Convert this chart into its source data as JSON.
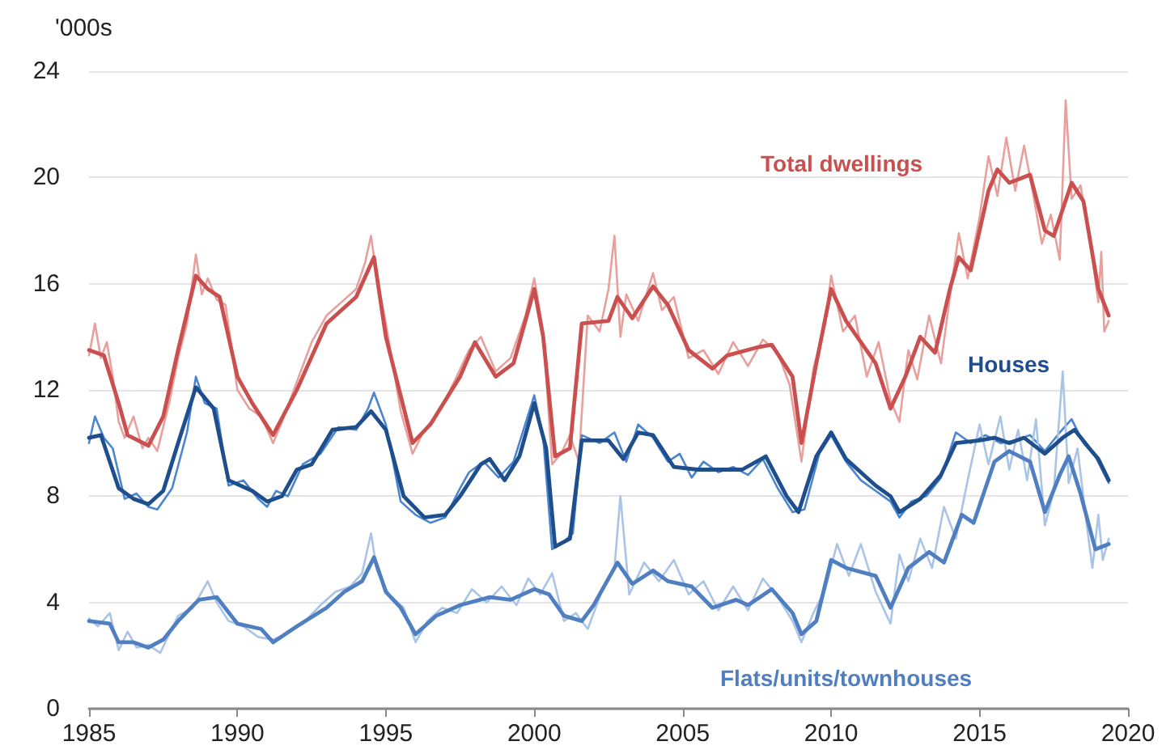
{
  "chart_data": {
    "type": "line",
    "ylabel": "'000s",
    "xlim": [
      1985,
      2020
    ],
    "xticks": [
      1985,
      1990,
      1995,
      2000,
      2005,
      2010,
      2015,
      2020
    ],
    "ylim": [
      0,
      24
    ],
    "yticks": [
      0,
      4,
      8,
      12,
      16,
      20,
      24
    ],
    "grid": "y",
    "marker": "none",
    "series": [
      {
        "color": "#e8a09d",
        "x": [
          1985,
          1985.2,
          1985.4,
          1985.6,
          1985.8,
          1986,
          1986.2,
          1986.5,
          1986.8,
          1987,
          1987.3,
          1987.7,
          1988,
          1988.3,
          1988.6,
          1988.8,
          1989,
          1989.3,
          1989.6,
          1990,
          1990.4,
          1990.8,
          1991.2,
          1991.5,
          1992,
          1992.5,
          1993,
          1993.5,
          1994,
          1994.3,
          1994.5,
          1994.7,
          1995,
          1995.5,
          1995.9,
          1996.3,
          1996.8,
          1997.3,
          1997.8,
          1998.2,
          1998.7,
          1999.2,
          1999.7,
          2000,
          2000.3,
          2000.6,
          2000.9,
          2001.2,
          2001.5,
          2001.8,
          2002.2,
          2002.5,
          2002.7,
          2002.9,
          2003.1,
          2003.5,
          2004,
          2004.3,
          2004.7,
          2005.2,
          2005.7,
          2006.2,
          2006.7,
          2007.2,
          2007.7,
          2008.2,
          2008.6,
          2009,
          2009.4,
          2009.8,
          2010,
          2010.4,
          2010.8,
          2011.2,
          2011.6,
          2012,
          2012.3,
          2012.6,
          2012.9,
          2013.3,
          2013.7,
          2014,
          2014.3,
          2014.6,
          2015,
          2015.3,
          2015.6,
          2015.9,
          2016.2,
          2016.5,
          2016.8,
          2017.1,
          2017.4,
          2017.7,
          2017.9,
          2018.1,
          2018.4,
          2018.7,
          2019,
          2019.1,
          2019.2,
          2019.35
        ],
        "values": [
          13.3,
          14.5,
          13.2,
          13.8,
          12.5,
          10.8,
          10.2,
          11,
          9.8,
          10.2,
          9.7,
          11.5,
          13.2,
          14.5,
          17.1,
          15.6,
          16.2,
          15.4,
          15.2,
          12,
          11.3,
          11,
          10,
          10.8,
          12.3,
          13.8,
          14.8,
          15.3,
          15.8,
          16.8,
          17.8,
          16.2,
          14.5,
          11.2,
          9.6,
          10.5,
          11.2,
          12.3,
          13.5,
          14,
          12.7,
          13.2,
          14.8,
          16.2,
          14.2,
          9.2,
          9.6,
          10.3,
          9.3,
          14.8,
          14.2,
          15.8,
          17.8,
          14,
          15.6,
          14.6,
          16.4,
          15,
          15.5,
          13.2,
          13.5,
          12.6,
          13.8,
          12.9,
          13.9,
          13.4,
          12.2,
          9.3,
          12.8,
          14.5,
          16.3,
          14.2,
          14.8,
          12.5,
          13.8,
          11.6,
          10.8,
          13.5,
          12.4,
          14.8,
          13,
          15.5,
          17.9,
          16.2,
          18.5,
          20.8,
          19.3,
          21.5,
          19.5,
          21.2,
          19.4,
          17.5,
          18.6,
          16.9,
          22.9,
          19.2,
          19.7,
          17.8,
          15.3,
          17.2,
          14.2,
          14.6
        ]
      },
      {
        "color": "#4a86cf",
        "x": [
          1985,
          1985.2,
          1985.5,
          1985.8,
          1986.2,
          1986.6,
          1987,
          1987.3,
          1987.8,
          1988.3,
          1988.6,
          1988.9,
          1989.3,
          1989.7,
          1990.2,
          1990.7,
          1991,
          1991.3,
          1991.7,
          1992.2,
          1992.8,
          1993.4,
          1994,
          1994.4,
          1994.6,
          1995,
          1995.5,
          1996,
          1996.5,
          1997,
          1997.5,
          1997.8,
          1998.3,
          1998.8,
          1999.3,
          2000,
          2000.3,
          2000.6,
          2000.9,
          2001.3,
          2001.6,
          2002.2,
          2002.7,
          2003.1,
          2003.5,
          2004,
          2004.5,
          2004.9,
          2005.3,
          2005.7,
          2006.2,
          2006.7,
          2007.2,
          2007.7,
          2008.2,
          2008.7,
          2009.1,
          2009.6,
          2010,
          2010.5,
          2011,
          2011.5,
          2012,
          2012.3,
          2012.7,
          2013.2,
          2013.7,
          2014.2,
          2014.7,
          2015.2,
          2015.7,
          2016.2,
          2016.7,
          2017.2,
          2017.7,
          2018.1,
          2018.5,
          2018.9,
          2019.35
        ],
        "values": [
          10,
          11,
          10.2,
          9.8,
          7.9,
          8.1,
          7.6,
          7.5,
          8.3,
          10.4,
          12.5,
          11.5,
          11.3,
          8.4,
          8.6,
          7.9,
          7.6,
          8.2,
          8,
          9.2,
          9.6,
          10.6,
          10.5,
          11.3,
          11.9,
          10.7,
          7.8,
          7.3,
          7,
          7.2,
          8.3,
          8.9,
          9.3,
          8.7,
          9.3,
          11.8,
          10.2,
          6,
          6.2,
          6.6,
          10.3,
          10,
          10.4,
          9.3,
          10.7,
          10.2,
          9.3,
          9.6,
          8.7,
          9.3,
          8.9,
          9.1,
          8.8,
          9.4,
          8.3,
          7.4,
          7.5,
          9.6,
          10.3,
          9.3,
          8.6,
          8.2,
          7.8,
          7.2,
          7.8,
          8,
          8.7,
          10.4,
          10,
          10.3,
          10,
          10.1,
          10.3,
          9.7,
          10.4,
          10.9,
          10,
          9.5,
          8.5
        ]
      },
      {
        "color": "#a9c4e6",
        "x": [
          1985,
          1985.3,
          1985.7,
          1986,
          1986.3,
          1986.6,
          1987,
          1987.4,
          1988,
          1988.5,
          1989,
          1989.3,
          1989.7,
          1990.2,
          1990.7,
          1991.2,
          1991.6,
          1992.2,
          1992.8,
          1993.3,
          1993.8,
          1994.2,
          1994.5,
          1994.7,
          1995.1,
          1995.6,
          1996,
          1996.4,
          1996.9,
          1997.4,
          1997.9,
          1998.4,
          1998.9,
          1999.4,
          1999.8,
          2000.2,
          2000.6,
          2001,
          2001.4,
          2001.8,
          2002.3,
          2002.7,
          2002.9,
          2003.2,
          2003.7,
          2004.2,
          2004.7,
          2005.2,
          2005.7,
          2006.2,
          2006.7,
          2007.2,
          2007.7,
          2008.2,
          2008.7,
          2009,
          2009.4,
          2009.8,
          2010.2,
          2010.6,
          2011,
          2011.5,
          2012,
          2012.3,
          2012.6,
          2013,
          2013.4,
          2013.8,
          2014.2,
          2014.6,
          2015,
          2015.3,
          2015.7,
          2016,
          2016.3,
          2016.6,
          2016.9,
          2017.2,
          2017.5,
          2017.8,
          2018,
          2018.3,
          2018.6,
          2018.8,
          2019,
          2019.15,
          2019.35
        ],
        "values": [
          3.4,
          3.1,
          3.6,
          2.2,
          2.9,
          2.3,
          2.4,
          2.1,
          3.5,
          3.8,
          4.8,
          4,
          3.3,
          3.1,
          2.7,
          2.6,
          2.8,
          3.2,
          3.9,
          4.4,
          4.6,
          5.1,
          6.6,
          5.2,
          4.3,
          3.8,
          2.5,
          3.3,
          3.8,
          3.6,
          4.5,
          4,
          4.6,
          3.9,
          4.9,
          4.3,
          5.1,
          3.3,
          3.6,
          3,
          4.5,
          5.3,
          8,
          4.3,
          5.5,
          4.8,
          5.6,
          4.3,
          4.8,
          3.7,
          4.6,
          3.7,
          4.9,
          4.2,
          3.3,
          2.5,
          3.6,
          4.5,
          6.2,
          5,
          6.2,
          4.4,
          3.2,
          5.8,
          4.8,
          6.4,
          5.3,
          7.6,
          6.4,
          8.6,
          10.7,
          9.2,
          11,
          9,
          10.5,
          8.6,
          10.9,
          6.9,
          8.2,
          12.7,
          8.5,
          9.8,
          7,
          5.3,
          7.3,
          5.6,
          6.4
        ]
      },
      {
        "name": "Total dwellings",
        "color": "#c9504f",
        "x": [
          1985,
          1985.5,
          1986,
          1986.3,
          1987,
          1987.5,
          1988,
          1988.6,
          1989,
          1989.4,
          1990,
          1990.5,
          1991.2,
          1992,
          1993,
          1994,
          1994.6,
          1995,
          1995.9,
          1996.5,
          1997.5,
          1998,
          1998.7,
          1999.3,
          2000,
          2000.3,
          2000.7,
          2001.2,
          2001.6,
          2002.5,
          2002.8,
          2003.3,
          2004,
          2004.5,
          2005.2,
          2006,
          2006.5,
          2007.5,
          2008,
          2008.7,
          2009,
          2009.5,
          2010,
          2010.5,
          2011.5,
          2012,
          2012.5,
          2013,
          2013.5,
          2014,
          2014.3,
          2014.7,
          2015.3,
          2015.6,
          2016,
          2016.7,
          2017.2,
          2017.5,
          2018.1,
          2018.5,
          2019,
          2019.35
        ],
        "values": [
          13.5,
          13.3,
          11.5,
          10.3,
          9.9,
          11,
          13.5,
          16.3,
          15.8,
          15.5,
          12.5,
          11.5,
          10.3,
          12,
          14.5,
          15.5,
          17,
          14,
          10,
          10.7,
          12.5,
          13.8,
          12.5,
          13,
          15.8,
          14,
          9.5,
          9.8,
          14.5,
          14.6,
          15.5,
          14.7,
          15.9,
          15.2,
          13.5,
          12.8,
          13.3,
          13.6,
          13.7,
          12.5,
          10,
          13,
          15.8,
          14.6,
          13,
          11.3,
          12.5,
          14,
          13.4,
          15.8,
          17,
          16.5,
          19.5,
          20.3,
          19.8,
          20.1,
          18,
          17.8,
          19.8,
          19.1,
          15.8,
          14.8
        ]
      },
      {
        "name": "Houses",
        "color": "#1f4e8c",
        "x": [
          1985,
          1985.4,
          1986,
          1986.5,
          1987,
          1987.5,
          1988,
          1988.6,
          1989.2,
          1989.7,
          1990.5,
          1991,
          1991.5,
          1992,
          1992.5,
          1993.2,
          1994,
          1994.5,
          1995,
          1995.6,
          1996.3,
          1997,
          1997.5,
          1998.2,
          1998.5,
          1999,
          1999.5,
          2000,
          2000.4,
          2000.7,
          2001.2,
          2001.6,
          2002.5,
          2003,
          2003.5,
          2004,
          2004.7,
          2005.5,
          2007,
          2007.8,
          2008.5,
          2008.9,
          2009.5,
          2010,
          2010.5,
          2011.5,
          2012,
          2012.3,
          2013,
          2013.7,
          2014.2,
          2015,
          2015.5,
          2016,
          2016.5,
          2017.2,
          2017.8,
          2018.2,
          2018.7,
          2019,
          2019.35
        ],
        "values": [
          10.2,
          10.3,
          8.3,
          7.9,
          7.7,
          8.2,
          10,
          12.1,
          11.3,
          8.6,
          8.2,
          7.8,
          8,
          9,
          9.2,
          10.5,
          10.6,
          11.2,
          10.5,
          8,
          7.2,
          7.3,
          8,
          9.2,
          9.4,
          8.6,
          9.5,
          11.5,
          9.8,
          6.1,
          6.4,
          10.1,
          10.1,
          9.4,
          10.4,
          10.3,
          9.1,
          9,
          9,
          9.5,
          8,
          7.4,
          9.5,
          10.4,
          9.4,
          8.4,
          8,
          7.4,
          7.9,
          8.8,
          10,
          10.1,
          10.2,
          10,
          10.2,
          9.6,
          10.2,
          10.5,
          9.8,
          9.4,
          8.6
        ]
      },
      {
        "name": "Flats/units/townhouses",
        "color": "#4f7fc0",
        "x": [
          1985,
          1985.7,
          1986,
          1986.5,
          1987,
          1987.5,
          1988,
          1988.7,
          1989.3,
          1990,
          1990.8,
          1991.2,
          1992,
          1993,
          1993.6,
          1994.2,
          1994.6,
          1995,
          1995.5,
          1996,
          1996.7,
          1997.5,
          1998.5,
          1999.2,
          2000,
          2000.5,
          2001,
          2001.6,
          2002,
          2002.8,
          2003.3,
          2004,
          2004.5,
          2005.3,
          2006,
          2006.8,
          2007.2,
          2008,
          2008.7,
          2009,
          2009.5,
          2010,
          2010.5,
          2011.5,
          2012,
          2012.6,
          2013.3,
          2013.8,
          2014.4,
          2014.8,
          2015.5,
          2016,
          2016.7,
          2017.2,
          2017.7,
          2018,
          2018.4,
          2018.9,
          2019.35
        ],
        "values": [
          3.3,
          3.2,
          2.5,
          2.5,
          2.3,
          2.6,
          3.3,
          4.1,
          4.2,
          3.2,
          3,
          2.5,
          3.1,
          3.8,
          4.4,
          4.8,
          5.7,
          4.4,
          3.8,
          2.8,
          3.5,
          3.9,
          4.2,
          4.1,
          4.5,
          4.3,
          3.5,
          3.3,
          3.9,
          5.5,
          4.7,
          5.2,
          4.8,
          4.6,
          3.8,
          4.1,
          3.9,
          4.5,
          3.6,
          2.8,
          3.3,
          5.6,
          5.3,
          5,
          3.8,
          5.3,
          5.9,
          5.5,
          7.3,
          7,
          9.3,
          9.7,
          9.3,
          7.4,
          8.8,
          9.5,
          8.1,
          6,
          6.2
        ]
      }
    ]
  }
}
